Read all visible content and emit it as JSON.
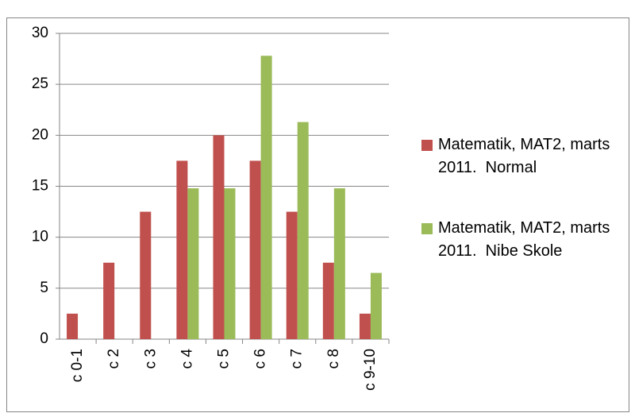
{
  "chart_data": {
    "type": "bar",
    "categories": [
      "c 0-1",
      "c 2",
      "c 3",
      "c 4",
      "c 5",
      "c 6",
      "c 7",
      "c 8",
      "c 9-10"
    ],
    "series": [
      {
        "name": "Matematik, MAT2, marts 2011.  Normal",
        "color": "#c0504d",
        "values": [
          2.5,
          7.5,
          12.5,
          17.5,
          20,
          17.5,
          12.5,
          7.5,
          2.5
        ]
      },
      {
        "name": "Matematik, MAT2, marts 2011.  Nibe Skole",
        "color": "#9bbb59",
        "values": [
          0,
          0,
          0,
          14.8,
          14.8,
          27.8,
          21.3,
          14.8,
          6.5
        ]
      }
    ],
    "ylim": [
      0,
      30
    ],
    "yticks": [
      0,
      5,
      10,
      15,
      20,
      25,
      30
    ],
    "grid": true,
    "legend": "right"
  }
}
